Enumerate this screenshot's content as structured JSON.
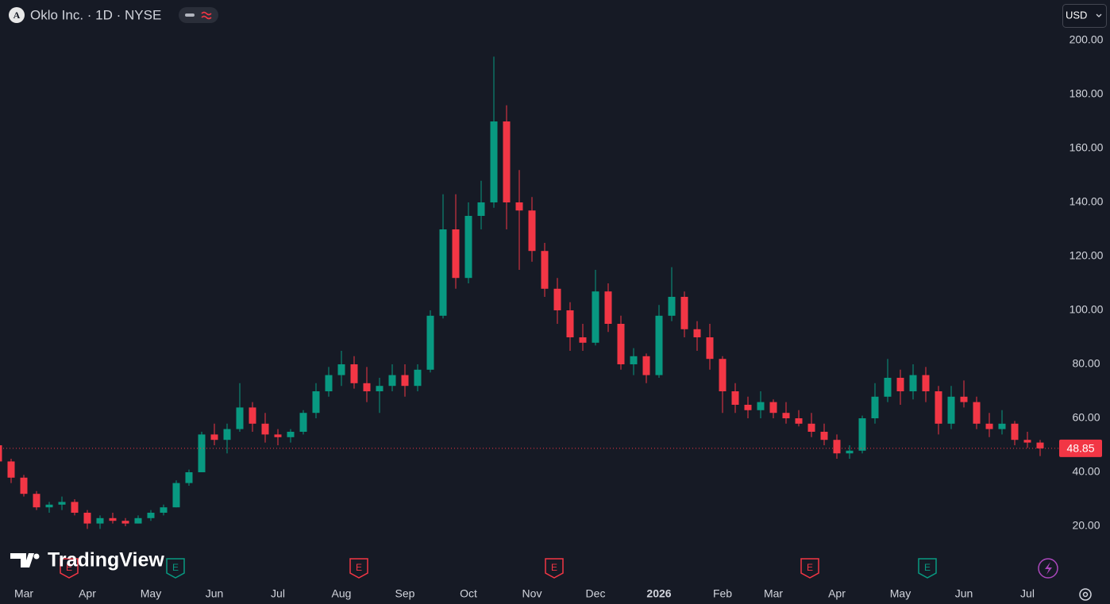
{
  "chart_data": {
    "type": "candlestick",
    "logo_letter": "A",
    "title": "Oklo Inc. · 1D · NYSE",
    "currency": "USD",
    "watermark": "TradingView",
    "up_color": "#089981",
    "down_color": "#f23645",
    "categories": [
      null,
      null,
      "Mar",
      null,
      null,
      null,
      null,
      "Apr",
      null,
      null,
      null,
      null,
      "May",
      null,
      null,
      null,
      null,
      "Jun",
      null,
      null,
      null,
      null,
      "Jul",
      null,
      null,
      null,
      null,
      "Aug",
      null,
      null,
      null,
      null,
      "Sep",
      null,
      null,
      null,
      null,
      "Oct",
      null,
      null,
      null,
      null,
      "Nov",
      null,
      null,
      null,
      null,
      "Dec",
      null,
      null,
      null,
      null,
      "2026",
      null,
      null,
      null,
      null,
      "Feb",
      null,
      null,
      null,
      "Mar",
      null,
      null,
      null,
      null,
      "Apr",
      null,
      null,
      null,
      null,
      "May",
      null,
      null,
      null,
      null,
      "Jun",
      null,
      null,
      null,
      null,
      "Jul",
      null
    ],
    "open": [
      50,
      44,
      38,
      32,
      27,
      28,
      29,
      25,
      21,
      23,
      22,
      21,
      23,
      25,
      27,
      36,
      40,
      54,
      52,
      56,
      64,
      58,
      54,
      53,
      55,
      62,
      70,
      76,
      80,
      73,
      70,
      72,
      76,
      72,
      78,
      98,
      130,
      112,
      135,
      140,
      170,
      140,
      137,
      122,
      108,
      100,
      90,
      88,
      107,
      95,
      80,
      83,
      76,
      98,
      105,
      93,
      90,
      82,
      70,
      65,
      63,
      66,
      62,
      60,
      58,
      55,
      52,
      47,
      48,
      60,
      68,
      75,
      70,
      76,
      70,
      58,
      68,
      66,
      58,
      56,
      58,
      52,
      51
    ],
    "high": [
      51,
      45,
      39,
      33,
      29,
      31,
      30,
      26,
      24,
      25,
      23,
      24,
      26,
      28,
      37,
      41,
      55,
      58,
      58,
      73,
      66,
      62,
      56,
      56,
      63,
      73,
      79,
      85,
      83,
      79,
      75,
      80,
      80,
      80,
      100,
      143,
      143,
      140,
      148,
      194,
      176,
      152,
      142,
      125,
      112,
      103,
      95,
      115,
      110,
      98,
      86,
      84,
      102,
      116,
      107,
      96,
      95,
      83,
      73,
      68,
      70,
      67,
      66,
      63,
      62,
      58,
      54,
      50,
      61,
      73,
      82,
      78,
      80,
      79,
      72,
      72,
      74,
      68,
      62,
      63,
      59,
      55,
      52
    ],
    "low": [
      43,
      36,
      31,
      26,
      25,
      26,
      24,
      19,
      19,
      21,
      20,
      21,
      22,
      24,
      27,
      35,
      40,
      50,
      47,
      55,
      55,
      51,
      50,
      51,
      54,
      60,
      68,
      72,
      71,
      66,
      62,
      70,
      68,
      70,
      77,
      97,
      108,
      110,
      130,
      138,
      130,
      115,
      118,
      105,
      95,
      85,
      85,
      87,
      92,
      78,
      76,
      73,
      75,
      96,
      90,
      85,
      78,
      62,
      62,
      60,
      60,
      60,
      58,
      57,
      53,
      50,
      45,
      45,
      47,
      58,
      66,
      65,
      67,
      66,
      54,
      56,
      64,
      56,
      53,
      54,
      50,
      49,
      46
    ],
    "close": [
      44,
      38,
      32,
      27,
      28,
      29,
      25,
      21,
      23,
      22,
      21,
      23,
      25,
      27,
      36,
      40,
      54,
      52,
      56,
      64,
      58,
      54,
      53,
      55,
      62,
      70,
      76,
      80,
      73,
      70,
      72,
      76,
      72,
      78,
      98,
      130,
      112,
      135,
      140,
      170,
      140,
      137,
      122,
      108,
      100,
      90,
      88,
      107,
      95,
      80,
      83,
      76,
      98,
      105,
      93,
      90,
      82,
      70,
      65,
      63,
      66,
      62,
      60,
      58,
      55,
      52,
      47,
      48,
      60,
      68,
      75,
      70,
      76,
      70,
      58,
      68,
      66,
      58,
      56,
      58,
      52,
      51,
      48.85
    ],
    "ylim": [
      -1,
      215
    ],
    "yticks": [
      {
        "value": 20,
        "label": "20.00"
      },
      {
        "value": 40,
        "label": "40.00"
      },
      {
        "value": 60,
        "label": "60.00"
      },
      {
        "value": 80,
        "label": "80.00"
      },
      {
        "value": 100,
        "label": "100.00"
      },
      {
        "value": 120,
        "label": "120.00"
      },
      {
        "value": 140,
        "label": "140.00"
      },
      {
        "value": 160,
        "label": "160.00"
      },
      {
        "value": 180,
        "label": "180.00"
      },
      {
        "value": 200,
        "label": "200.00"
      }
    ],
    "events": [
      {
        "label": "E",
        "color": "#f23645"
      },
      {
        "label": "E",
        "color": "#089981"
      },
      {
        "label": "E",
        "color": "#f23645"
      },
      {
        "label": "E",
        "color": "#f23645"
      },
      {
        "label": "E",
        "color": "#f23645"
      },
      {
        "label": "E",
        "color": "#089981"
      }
    ]
  }
}
